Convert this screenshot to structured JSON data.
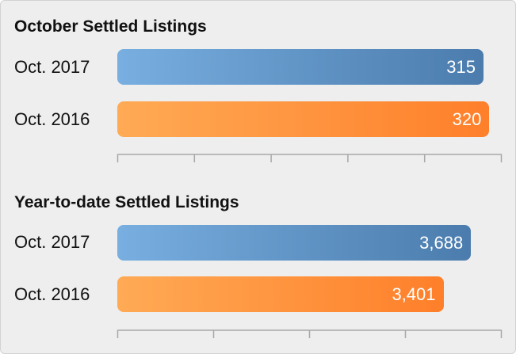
{
  "colors": {
    "bar_2017_start": "#78aee0",
    "bar_2017_end": "#4b7cad",
    "bar_2016_start": "#ffaa55",
    "bar_2016_end": "#ff7f2a",
    "axis": "#a8a8a8",
    "background": "#eeeeee"
  },
  "chart_data": [
    {
      "type": "bar",
      "orientation": "horizontal",
      "title": "October Settled Listings",
      "categories": [
        "Oct. 2017",
        "Oct. 2016"
      ],
      "values": [
        315,
        320
      ],
      "value_labels": [
        "315",
        "320"
      ],
      "xlim": [
        0,
        330
      ],
      "ticks": [
        0,
        66,
        132,
        198,
        264,
        330
      ],
      "tick_labels_shown": false,
      "grid": false
    },
    {
      "type": "bar",
      "orientation": "horizontal",
      "title": "Year-to-date Settled Listings",
      "categories": [
        "Oct. 2017",
        "Oct. 2016"
      ],
      "values": [
        3688,
        3401
      ],
      "value_labels": [
        "3,688",
        "3,401"
      ],
      "xlim": [
        0,
        4000
      ],
      "ticks": [
        0,
        1000,
        2000,
        3000,
        4000
      ],
      "tick_labels_shown": false,
      "grid": false
    }
  ]
}
